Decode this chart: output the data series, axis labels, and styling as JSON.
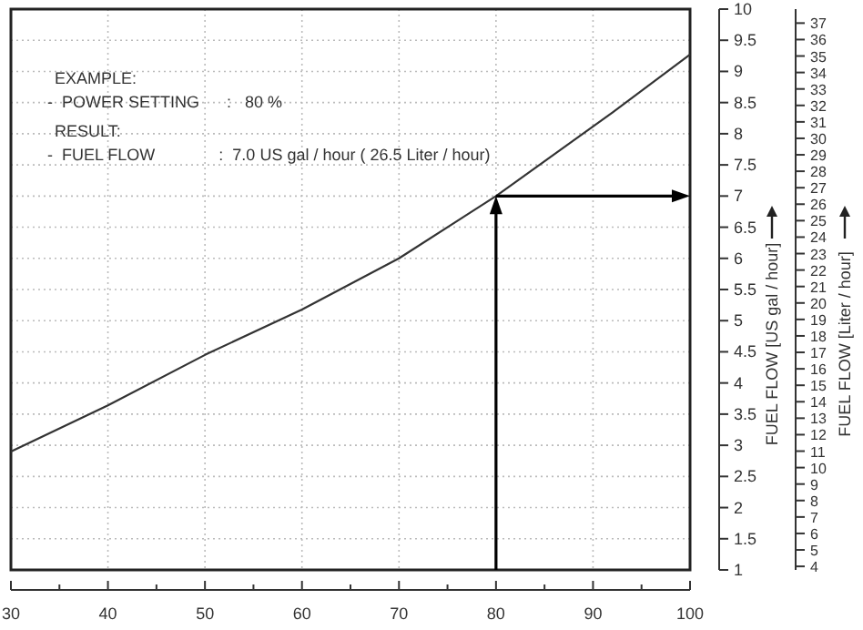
{
  "chart_data": {
    "type": "line",
    "x": [
      30,
      40,
      50,
      60,
      70,
      80,
      92,
      100
    ],
    "series": [
      {
        "color": "#333333",
        "values": [
          2.9,
          3.64,
          4.45,
          5.18,
          6.0,
          7.0,
          8.34,
          9.27
        ]
      }
    ],
    "xlim": [
      30,
      100
    ],
    "xticks": [
      30,
      {
        "value": 35,
        "label": null
      },
      40,
      {
        "value": 45,
        "label": null
      },
      50,
      {
        "value": 55,
        "label": null
      },
      60,
      {
        "value": 65,
        "label": null
      },
      70,
      {
        "value": 75,
        "label": null
      },
      80,
      {
        "value": 85,
        "label": null
      },
      90,
      {
        "value": 95,
        "label": null
      },
      100
    ],
    "ylim": [
      1,
      10
    ],
    "yticks": [
      1,
      1.5,
      2,
      2.5,
      3,
      3.5,
      4,
      4.5,
      5,
      5.5,
      6,
      6.5,
      7,
      7.5,
      8,
      8.5,
      9,
      9.5,
      10
    ],
    "y2lim": [
      3.785,
      37.85
    ],
    "y2ticks": [
      4,
      5,
      6,
      7,
      8,
      9,
      10,
      11,
      12,
      13,
      14,
      15,
      16,
      17,
      18,
      19,
      20,
      21,
      22,
      23,
      24,
      25,
      26,
      27,
      28,
      29,
      30,
      31,
      32,
      33,
      34,
      35,
      36,
      37
    ],
    "ylabel": "FUEL FLOW [US gal / hour]",
    "y2label": "FUEL FLOW [Liter / hour]",
    "annotations": [
      "EXAMPLE:",
      "-  POWER SETTING      :   80 %",
      "RESULT:",
      {
        "text": "-  FUEL FLOW              :  7.0 US gal / hour ( 26.5 Liter / hour)",
        "x": 80,
        "y": 7
      }
    ],
    "grid": true
  }
}
